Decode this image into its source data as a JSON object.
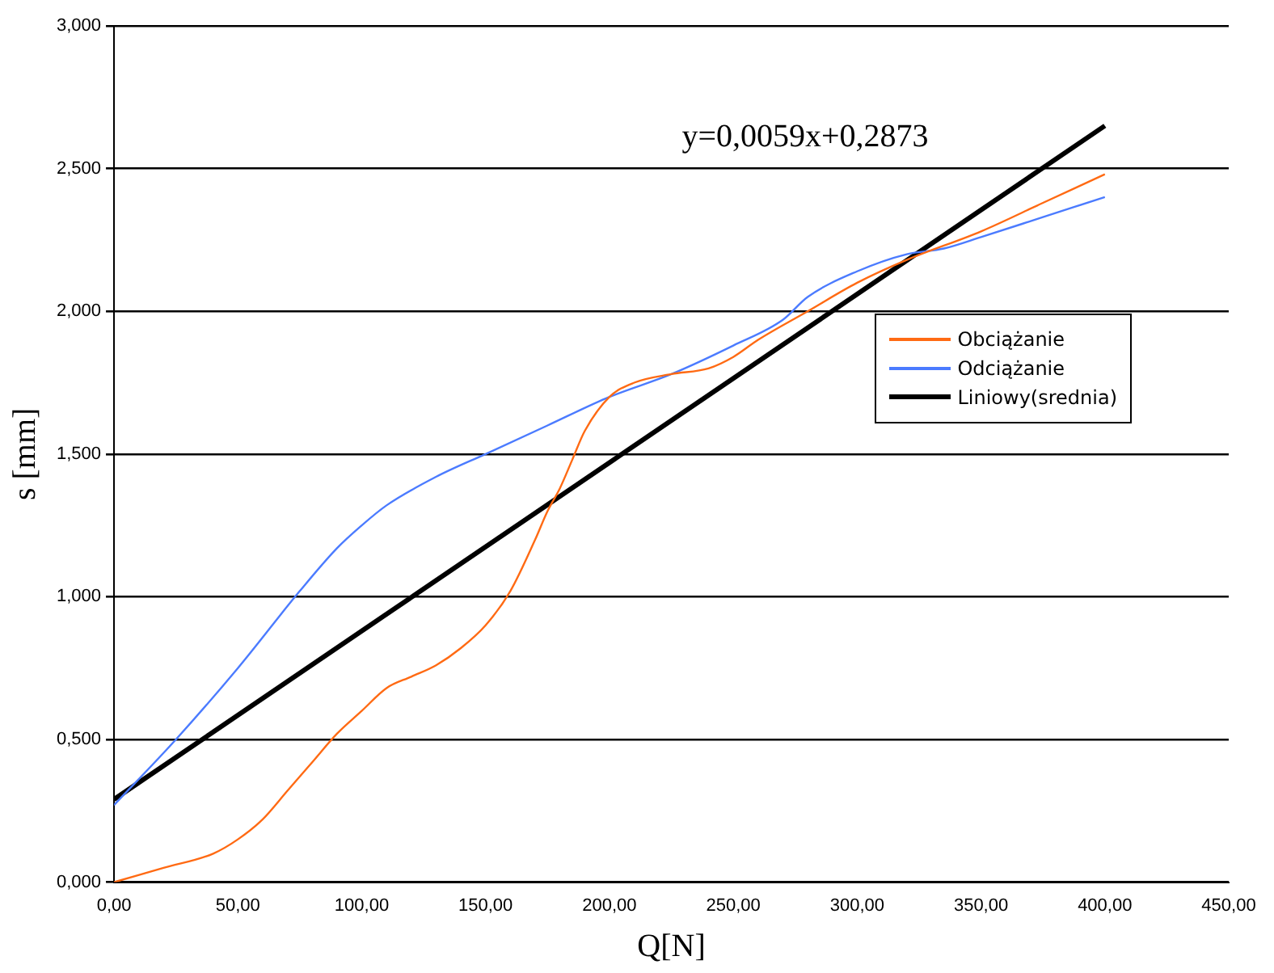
{
  "chart_data": {
    "type": "line",
    "xlabel": "Q[N]",
    "ylabel": "s [mm]",
    "xlim": [
      0,
      450
    ],
    "ylim": [
      0,
      3
    ],
    "xticks": [
      {
        "value": 0,
        "label": "0,00"
      },
      {
        "value": 50,
        "label": "50,00"
      },
      {
        "value": 100,
        "label": "100,00"
      },
      {
        "value": 150,
        "label": "150,00"
      },
      {
        "value": 200,
        "label": "200,00"
      },
      {
        "value": 250,
        "label": "250,00"
      },
      {
        "value": 300,
        "label": "300,00"
      },
      {
        "value": 350,
        "label": "350,00"
      },
      {
        "value": 400,
        "label": "400,00"
      },
      {
        "value": 450,
        "label": "450,00"
      }
    ],
    "yticks": [
      {
        "value": 0,
        "label": "0,000"
      },
      {
        "value": 0.5,
        "label": "0,500"
      },
      {
        "value": 1,
        "label": "1,000"
      },
      {
        "value": 1.5,
        "label": "1,500"
      },
      {
        "value": 2,
        "label": "2,000"
      },
      {
        "value": 2.5,
        "label": "2,500"
      },
      {
        "value": 3,
        "label": "3,000"
      }
    ],
    "grid": "y",
    "legend": "right",
    "marker": "none",
    "line_style": "solid",
    "annotations": [
      "y=0,0059x+0,2873"
    ],
    "series": [
      {
        "name": "Obciążanie",
        "color": "#ff6a13",
        "x": [
          0,
          20,
          40,
          50,
          60,
          70,
          80,
          90,
          100,
          110,
          120,
          130,
          140,
          150,
          160,
          170,
          175,
          180,
          185,
          190,
          200,
          210,
          225,
          240,
          250,
          260,
          280,
          300,
          320,
          350,
          375,
          400
        ],
        "values": [
          0,
          0.05,
          0.1,
          0.15,
          0.22,
          0.32,
          0.42,
          0.52,
          0.6,
          0.68,
          0.72,
          0.76,
          0.82,
          0.9,
          1.02,
          1.2,
          1.3,
          1.38,
          1.48,
          1.58,
          1.7,
          1.75,
          1.78,
          1.8,
          1.84,
          1.9,
          2.0,
          2.1,
          2.18,
          2.28,
          2.38,
          2.48
        ]
      },
      {
        "name": "Odciążanie",
        "color": "#4b7bff",
        "x": [
          0,
          25,
          50,
          75,
          90,
          100,
          110,
          130,
          150,
          175,
          200,
          225,
          250,
          270,
          280,
          300,
          320,
          335,
          350,
          375,
          400
        ],
        "values": [
          0.27,
          0.5,
          0.75,
          1.02,
          1.17,
          1.25,
          1.32,
          1.42,
          1.5,
          1.6,
          1.7,
          1.78,
          1.88,
          1.97,
          2.05,
          2.14,
          2.2,
          2.22,
          2.26,
          2.33,
          2.4
        ]
      },
      {
        "name": "Liniowy(srednia)",
        "color": "#000000",
        "x": [
          0,
          400
        ],
        "values": [
          0.29,
          2.65
        ]
      }
    ]
  }
}
